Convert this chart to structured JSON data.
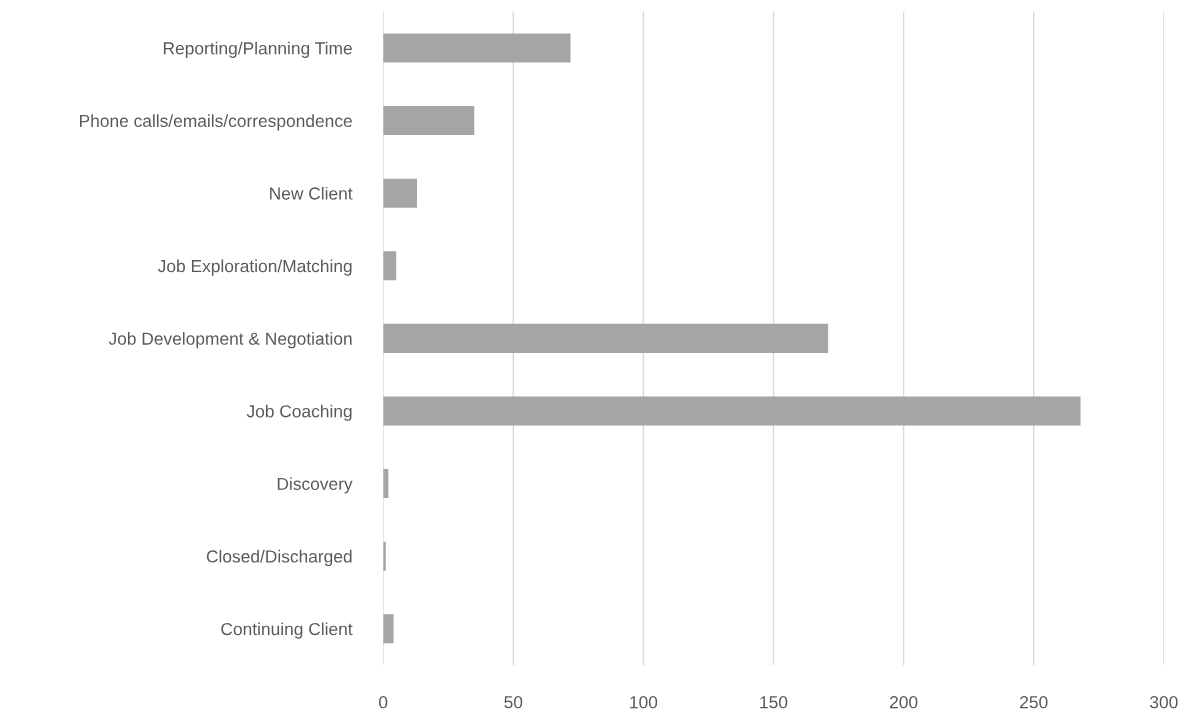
{
  "chart_data": {
    "type": "bar",
    "orientation": "horizontal",
    "categories": [
      "Reporting/Planning Time",
      "Phone calls/emails/correspondence",
      "New Client",
      "Job Exploration/Matching",
      "Job Development & Negotiation",
      "Job Coaching",
      "Discovery",
      "Closed/Discharged",
      "Continuing Client"
    ],
    "values": [
      72,
      35,
      13,
      5,
      171,
      268,
      2,
      1,
      4
    ],
    "color": "#a5a5a5",
    "xlim": [
      0,
      300
    ],
    "xticks": [
      0,
      50,
      100,
      150,
      200,
      250,
      300
    ],
    "grid": "x"
  }
}
